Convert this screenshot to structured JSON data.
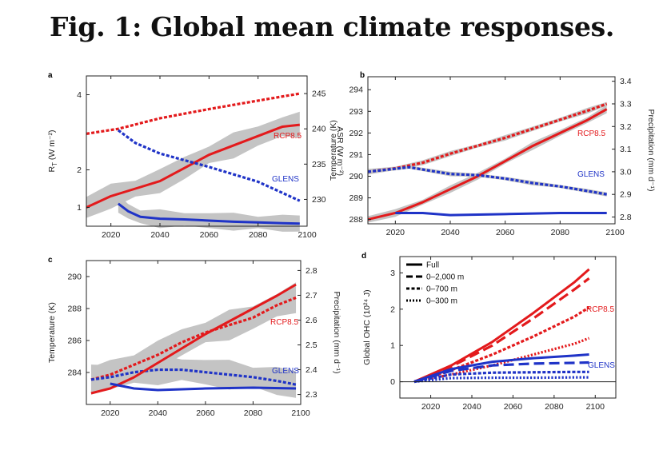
{
  "title": "Fig. 1: Global mean climate responses.",
  "colors": {
    "red": "#e31a1c",
    "blue": "#1f33c7",
    "gray": "#c4c4c4",
    "axis": "#222222"
  },
  "chart_data": [
    {
      "panel": "a",
      "type": "line",
      "xlim": [
        2010,
        2100
      ],
      "xticks": [
        2020,
        2040,
        2060,
        2080,
        2100
      ],
      "ylabel_left": "RT (W m⁻²)",
      "ylabel_left_main": "R",
      "ylabel_left_sub": "T",
      "ylabel_left_units": "(W m⁻²)",
      "ylim_left": [
        0.5,
        4.5
      ],
      "yticks_left": [
        1,
        2,
        4
      ],
      "ylabel_right": "ASR (W m⁻²)",
      "ylim_right": [
        226.2,
        247.5
      ],
      "yticks_right": [
        230,
        235,
        240,
        245
      ],
      "series": [
        {
          "name": "RCP8.5 RT",
          "axis": "left",
          "style": "solid",
          "color": "red",
          "band": true,
          "band_width": 0.28,
          "x": [
            2010,
            2020,
            2030,
            2040,
            2050,
            2060,
            2070,
            2080,
            2090,
            2097
          ],
          "y": [
            1.0,
            1.3,
            1.5,
            1.7,
            2.05,
            2.4,
            2.65,
            2.9,
            3.15,
            3.2
          ]
        },
        {
          "name": "GLENS RT",
          "axis": "left",
          "style": "solid",
          "color": "blue",
          "band": true,
          "band_width": 0.2,
          "x": [
            2023,
            2027,
            2032,
            2040,
            2050,
            2060,
            2070,
            2080,
            2090,
            2097
          ],
          "y": [
            1.1,
            0.9,
            0.75,
            0.7,
            0.68,
            0.65,
            0.62,
            0.6,
            0.58,
            0.57
          ]
        },
        {
          "name": "RCP8.5 ASR",
          "axis": "right",
          "style": "dotted",
          "color": "red",
          "band": false,
          "x": [
            2010,
            2023,
            2040,
            2060,
            2080,
            2097
          ],
          "y": [
            239.3,
            240.0,
            241.5,
            242.8,
            244.0,
            245.0
          ]
        },
        {
          "name": "GLENS ASR",
          "axis": "right",
          "style": "dotted",
          "color": "blue",
          "band": false,
          "x": [
            2023,
            2030,
            2040,
            2060,
            2080,
            2097
          ],
          "y": [
            239.8,
            238.0,
            236.5,
            234.6,
            232.5,
            229.8
          ]
        }
      ],
      "annotations": [
        "RCP8.5",
        "GLENS"
      ]
    },
    {
      "panel": "b",
      "type": "line",
      "xlim": [
        2010,
        2100
      ],
      "xticks": [
        2020,
        2040,
        2060,
        2080,
        2100
      ],
      "ylabel_left": "Temperature (K)",
      "ylim_left": [
        287.8,
        294.6
      ],
      "yticks_left": [
        288,
        289,
        290,
        291,
        292,
        293,
        294
      ],
      "ylabel_right": "Precipitation (mm d⁻¹)",
      "ylim_right": [
        2.77,
        3.42
      ],
      "yticks_right": [
        2.8,
        2.9,
        3.0,
        3.1,
        3.2,
        3.3,
        3.4
      ],
      "series": [
        {
          "name": "RCP8.5 T",
          "axis": "left",
          "style": "solid",
          "color": "red",
          "band": true,
          "band_width": 0.15,
          "x": [
            2010,
            2020,
            2030,
            2040,
            2050,
            2060,
            2070,
            2080,
            2090,
            2097
          ],
          "y": [
            288.0,
            288.3,
            288.8,
            289.4,
            290.0,
            290.7,
            291.4,
            292.0,
            292.6,
            293.1
          ]
        },
        {
          "name": "GLENS T",
          "axis": "left",
          "style": "solid",
          "color": "blue",
          "band": false,
          "x": [
            2020,
            2030,
            2040,
            2060,
            2080,
            2097
          ],
          "y": [
            288.3,
            288.3,
            288.2,
            288.25,
            288.3,
            288.3
          ]
        },
        {
          "name": "RCP8.5 P",
          "axis": "right",
          "style": "dotted",
          "color": "red",
          "band": true,
          "band_width": 0.01,
          "x": [
            2010,
            2020,
            2030,
            2040,
            2050,
            2060,
            2070,
            2080,
            2090,
            2097
          ],
          "y": [
            3.0,
            3.015,
            3.04,
            3.08,
            3.115,
            3.15,
            3.19,
            3.23,
            3.27,
            3.3
          ]
        },
        {
          "name": "GLENS P",
          "axis": "right",
          "style": "dotted",
          "color": "blue",
          "band": true,
          "band_width": 0.008,
          "x": [
            2010,
            2025,
            2040,
            2050,
            2060,
            2070,
            2080,
            2090,
            2097
          ],
          "y": [
            3.0,
            3.02,
            2.99,
            2.985,
            2.97,
            2.95,
            2.935,
            2.915,
            2.9
          ]
        }
      ],
      "annotations": [
        "RCP8.5",
        "GLENS"
      ]
    },
    {
      "panel": "c",
      "type": "line",
      "xlim": [
        2010,
        2100
      ],
      "xticks": [
        2020,
        2040,
        2060,
        2080,
        2100
      ],
      "ylabel_left": "Temperature (K)",
      "ylim_left": [
        282.0,
        291.0
      ],
      "yticks_left": [
        284,
        286,
        288,
        290
      ],
      "ylabel_right": "Precipitation (mm d⁻¹)",
      "ylim_right": [
        2.26,
        2.84
      ],
      "yticks_right": [
        2.3,
        2.4,
        2.5,
        2.6,
        2.7,
        2.8
      ],
      "series": [
        {
          "name": "RCP8.5 P",
          "axis": "right",
          "style": "dotted",
          "color": "red",
          "band": true,
          "band_width": 0.05,
          "x": [
            2012,
            2020,
            2030,
            2040,
            2050,
            2060,
            2070,
            2080,
            2090,
            2098
          ],
          "y": [
            2.36,
            2.38,
            2.42,
            2.46,
            2.51,
            2.55,
            2.58,
            2.61,
            2.66,
            2.69
          ]
        },
        {
          "name": "GLENS P",
          "axis": "right",
          "style": "dotted",
          "color": "blue",
          "band": true,
          "band_width": 0.05,
          "x": [
            2012,
            2020,
            2030,
            2040,
            2050,
            2060,
            2070,
            2080,
            2090,
            2098
          ],
          "y": [
            2.36,
            2.37,
            2.39,
            2.4,
            2.4,
            2.39,
            2.38,
            2.37,
            2.355,
            2.34
          ]
        },
        {
          "name": "RCP8.5 T",
          "axis": "left",
          "style": "solid",
          "color": "red",
          "band": false,
          "x": [
            2012,
            2020,
            2030,
            2040,
            2050,
            2060,
            2070,
            2080,
            2090,
            2098
          ],
          "y": [
            282.7,
            283.0,
            283.7,
            284.6,
            285.5,
            286.4,
            287.2,
            288.0,
            288.8,
            289.5
          ]
        },
        {
          "name": "GLENS T",
          "axis": "left",
          "style": "solid",
          "color": "blue",
          "band": false,
          "x": [
            2020,
            2030,
            2040,
            2060,
            2080,
            2098
          ],
          "y": [
            283.3,
            283.0,
            282.9,
            283.0,
            283.05,
            283.0
          ]
        }
      ],
      "annotations": [
        "RCP8.5",
        "GLENS"
      ]
    },
    {
      "panel": "d",
      "type": "line",
      "xlim": [
        2005,
        2110
      ],
      "xticks": [
        2020,
        2040,
        2060,
        2080,
        2100
      ],
      "ylabel_left": "Global OHC (10²⁴ J)",
      "ylim_left": [
        -0.45,
        3.45
      ],
      "yticks_left": [
        0,
        1,
        2,
        3
      ],
      "legend": [
        "Full",
        "0–2,000 m",
        "0–700 m",
        "0–300 m"
      ],
      "series": [
        {
          "name": "RCP8.5 Full",
          "axis": "left",
          "style": "solid",
          "color": "red",
          "x": [
            2012,
            2030,
            2050,
            2070,
            2090,
            2097
          ],
          "y": [
            0.0,
            0.45,
            1.1,
            1.9,
            2.75,
            3.1
          ]
        },
        {
          "name": "RCP8.5 0–2,000 m",
          "axis": "left",
          "style": "dashed",
          "color": "red",
          "x": [
            2012,
            2030,
            2050,
            2070,
            2090,
            2097
          ],
          "y": [
            0.0,
            0.42,
            1.0,
            1.75,
            2.55,
            2.85
          ]
        },
        {
          "name": "RCP8.5 0–700 m",
          "axis": "left",
          "style": "dotted",
          "color": "red",
          "x": [
            2012,
            2030,
            2050,
            2070,
            2090,
            2097
          ],
          "y": [
            0.0,
            0.32,
            0.75,
            1.25,
            1.8,
            2.05
          ]
        },
        {
          "name": "RCP8.5 0–300 m",
          "axis": "left",
          "style": "dotted-fine",
          "color": "red",
          "x": [
            2012,
            2030,
            2050,
            2070,
            2090,
            2097
          ],
          "y": [
            0.0,
            0.2,
            0.45,
            0.75,
            1.05,
            1.2
          ]
        },
        {
          "name": "GLENS Full",
          "axis": "left",
          "style": "solid",
          "color": "blue",
          "x": [
            2012,
            2030,
            2050,
            2070,
            2090,
            2097
          ],
          "y": [
            0.0,
            0.35,
            0.55,
            0.65,
            0.72,
            0.75
          ]
        },
        {
          "name": "GLENS 0–2,000 m",
          "axis": "left",
          "style": "dashed",
          "color": "blue",
          "x": [
            2012,
            2030,
            2050,
            2070,
            2090,
            2097
          ],
          "y": [
            0.0,
            0.3,
            0.45,
            0.5,
            0.52,
            0.53
          ]
        },
        {
          "name": "GLENS 0–700 m",
          "axis": "left",
          "style": "dotted",
          "color": "blue",
          "x": [
            2012,
            2030,
            2050,
            2070,
            2090,
            2097
          ],
          "y": [
            0.0,
            0.2,
            0.25,
            0.26,
            0.27,
            0.27
          ]
        },
        {
          "name": "GLENS 0–300 m",
          "axis": "left",
          "style": "dotted-fine",
          "color": "blue",
          "x": [
            2012,
            2030,
            2050,
            2070,
            2090,
            2097
          ],
          "y": [
            0.0,
            0.1,
            0.11,
            0.11,
            0.12,
            0.12
          ]
        }
      ],
      "annotations": [
        "RCP8.5",
        "GLENS"
      ]
    }
  ]
}
